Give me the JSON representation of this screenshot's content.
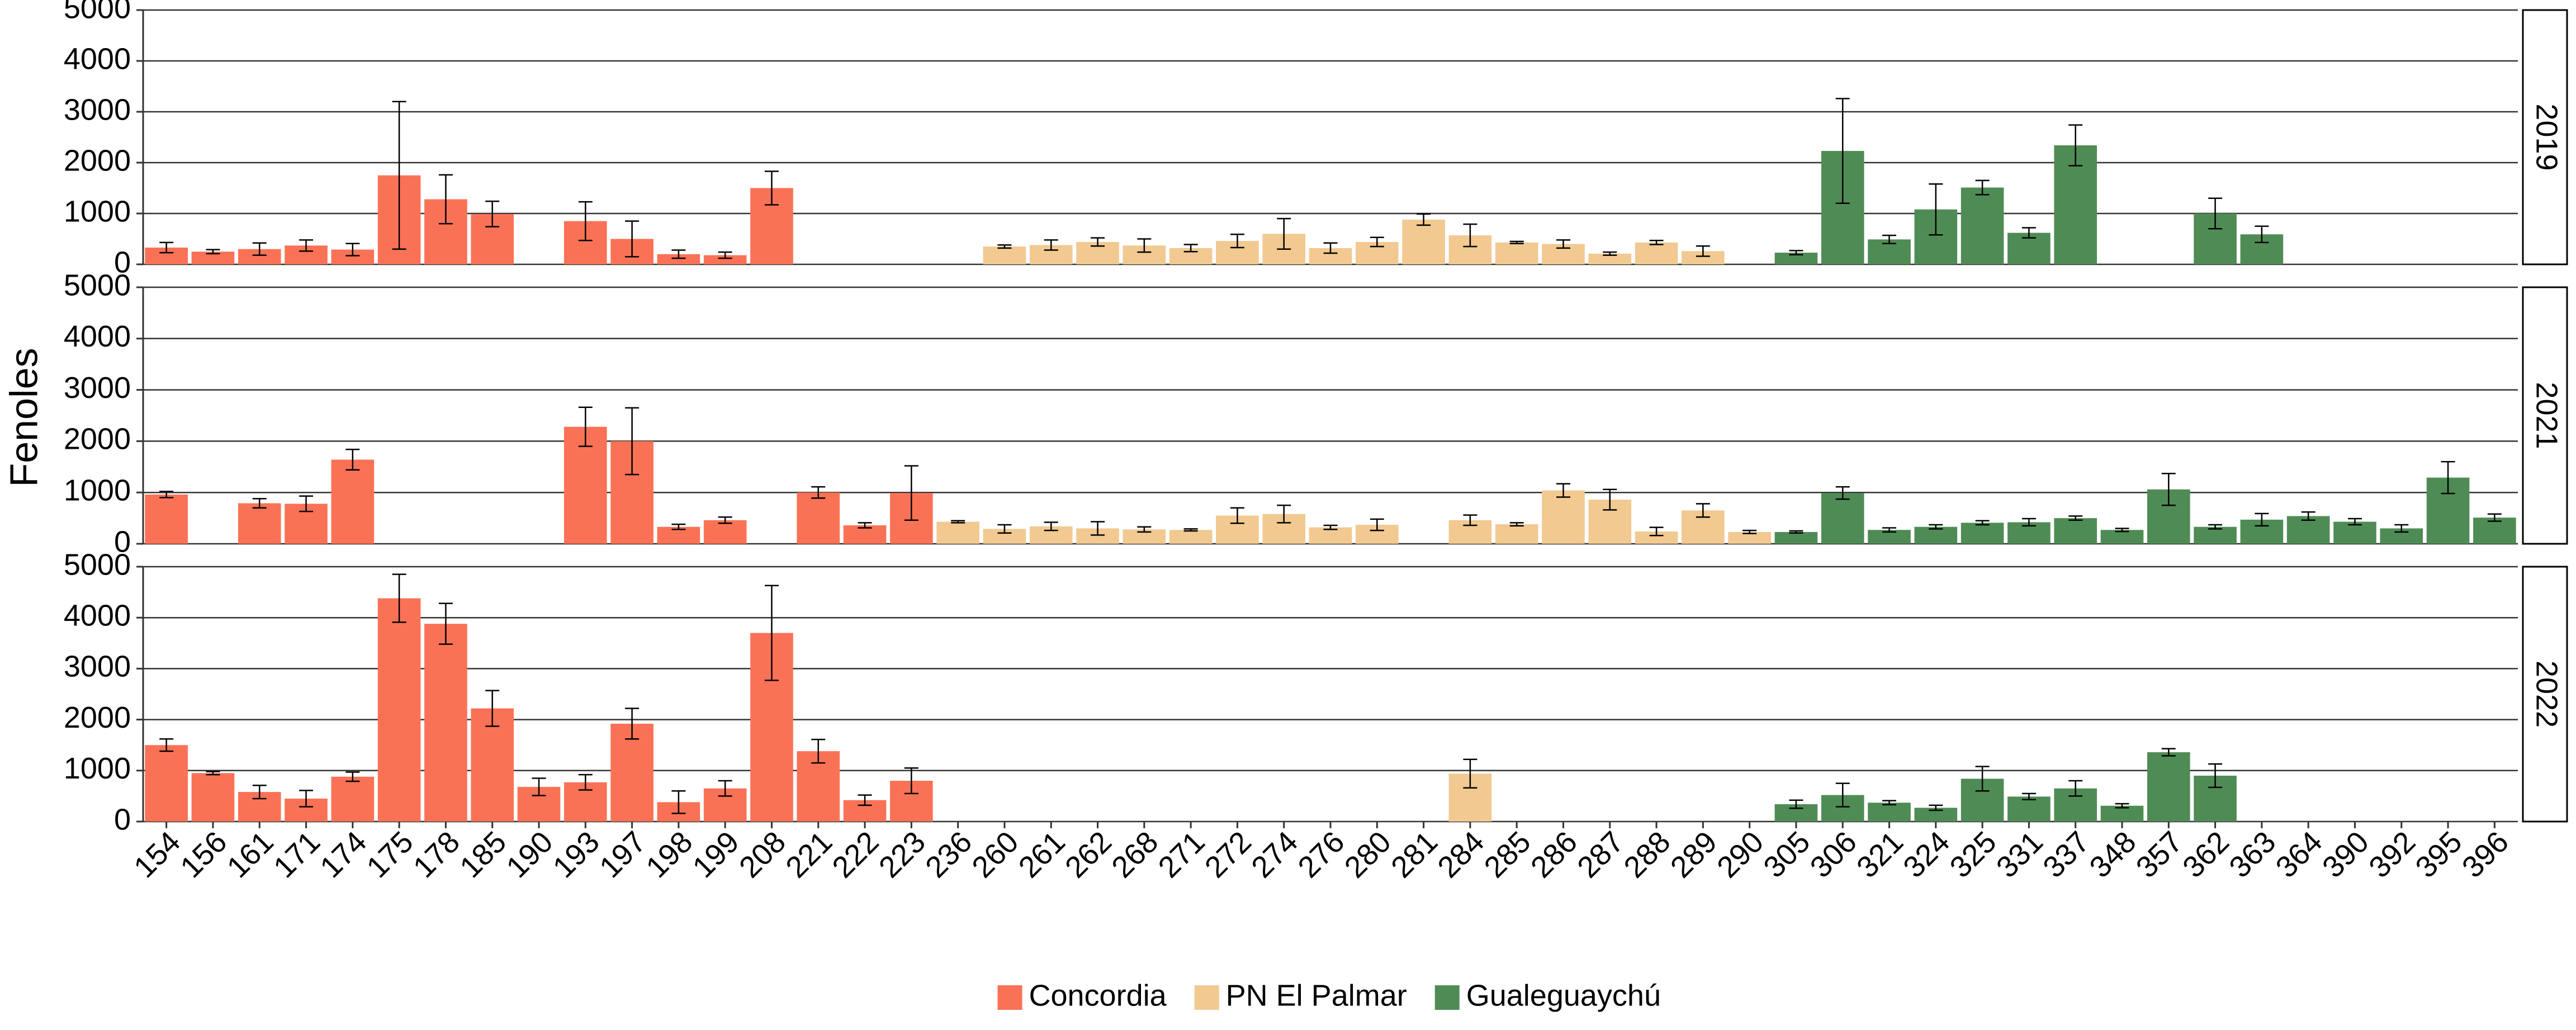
{
  "chart_data": {
    "type": "bar",
    "y_label": "Fenoles",
    "groups": [
      {
        "name": "Concordia",
        "color": "#fa7256",
        "categories": [
          "154",
          "156",
          "161",
          "171",
          "174",
          "175",
          "178",
          "185",
          "190",
          "193",
          "197",
          "198",
          "199",
          "208",
          "221",
          "222",
          "223"
        ]
      },
      {
        "name": "PN El Palmar",
        "color": "#f1c991",
        "categories": [
          "236",
          "260",
          "261",
          "262",
          "268",
          "271",
          "272",
          "274",
          "276",
          "280",
          "281",
          "284",
          "285",
          "286",
          "287",
          "288",
          "289",
          "290"
        ]
      },
      {
        "name": "Gualeguaychú",
        "color": "#4f8c55",
        "categories": [
          "305",
          "306",
          "321",
          "324",
          "325",
          "331",
          "337",
          "348",
          "357",
          "362",
          "363",
          "364",
          "390",
          "392",
          "395",
          "396"
        ]
      }
    ],
    "ylim": [
      0,
      5000
    ],
    "yticks": [
      0,
      1000,
      2000,
      3000,
      4000,
      5000
    ],
    "grid": true,
    "legend": "bottom",
    "panels": [
      {
        "label": "2019",
        "values": [
          330,
          250,
          300,
          370,
          290,
          1750,
          1280,
          990,
          null,
          850,
          500,
          200,
          180,
          1500,
          null,
          null,
          null,
          null,
          350,
          380,
          440,
          370,
          320,
          460,
          600,
          320,
          440,
          880,
          570,
          430,
          400,
          210,
          430,
          260,
          null,
          230,
          2230,
          490,
          1080,
          1510,
          620,
          2340,
          null,
          null,
          1000,
          590,
          null,
          null,
          null,
          null,
          null
        ],
        "errors": [
          100,
          40,
          120,
          110,
          120,
          1450,
          480,
          250,
          null,
          380,
          350,
          80,
          60,
          330,
          null,
          null,
          null,
          null,
          30,
          100,
          80,
          130,
          70,
          130,
          300,
          100,
          90,
          110,
          220,
          20,
          80,
          30,
          40,
          100,
          null,
          40,
          1030,
          80,
          500,
          140,
          100,
          400,
          null,
          null,
          300,
          160,
          null,
          null,
          null,
          null,
          null
        ]
      },
      {
        "label": "2021",
        "values": [
          960,
          null,
          790,
          780,
          1640,
          null,
          null,
          null,
          null,
          2280,
          2000,
          330,
          460,
          null,
          1000,
          360,
          990,
          430,
          290,
          340,
          300,
          280,
          270,
          550,
          580,
          320,
          370,
          null,
          460,
          380,
          1040,
          860,
          240,
          650,
          230,
          230,
          990,
          270,
          330,
          410,
          420,
          500,
          270,
          1060,
          330,
          470,
          540,
          430,
          300,
          1290,
          510
        ],
        "errors": [
          60,
          null,
          90,
          150,
          200,
          null,
          null,
          null,
          null,
          380,
          650,
          50,
          60,
          null,
          110,
          50,
          530,
          20,
          80,
          80,
          130,
          50,
          20,
          150,
          170,
          40,
          110,
          null,
          100,
          30,
          130,
          200,
          80,
          130,
          30,
          20,
          120,
          40,
          40,
          40,
          70,
          40,
          30,
          310,
          40,
          120,
          80,
          60,
          70,
          310,
          70
        ]
      },
      {
        "label": "2022",
        "values": [
          1500,
          950,
          580,
          450,
          880,
          4380,
          3880,
          2220,
          680,
          770,
          1920,
          380,
          650,
          3700,
          1380,
          420,
          800,
          null,
          null,
          null,
          null,
          null,
          null,
          null,
          null,
          null,
          null,
          null,
          940,
          null,
          null,
          null,
          null,
          null,
          null,
          340,
          520,
          370,
          270,
          840,
          490,
          650,
          310,
          1360,
          900,
          null,
          null,
          null,
          null,
          null,
          null
        ],
        "errors": [
          120,
          30,
          130,
          160,
          90,
          470,
          400,
          350,
          170,
          150,
          300,
          220,
          150,
          930,
          230,
          100,
          250,
          null,
          null,
          null,
          null,
          null,
          null,
          null,
          null,
          null,
          null,
          null,
          280,
          null,
          null,
          null,
          null,
          null,
          null,
          80,
          230,
          40,
          50,
          240,
          60,
          150,
          40,
          70,
          230,
          null,
          null,
          null,
          null,
          null,
          null
        ]
      }
    ]
  }
}
